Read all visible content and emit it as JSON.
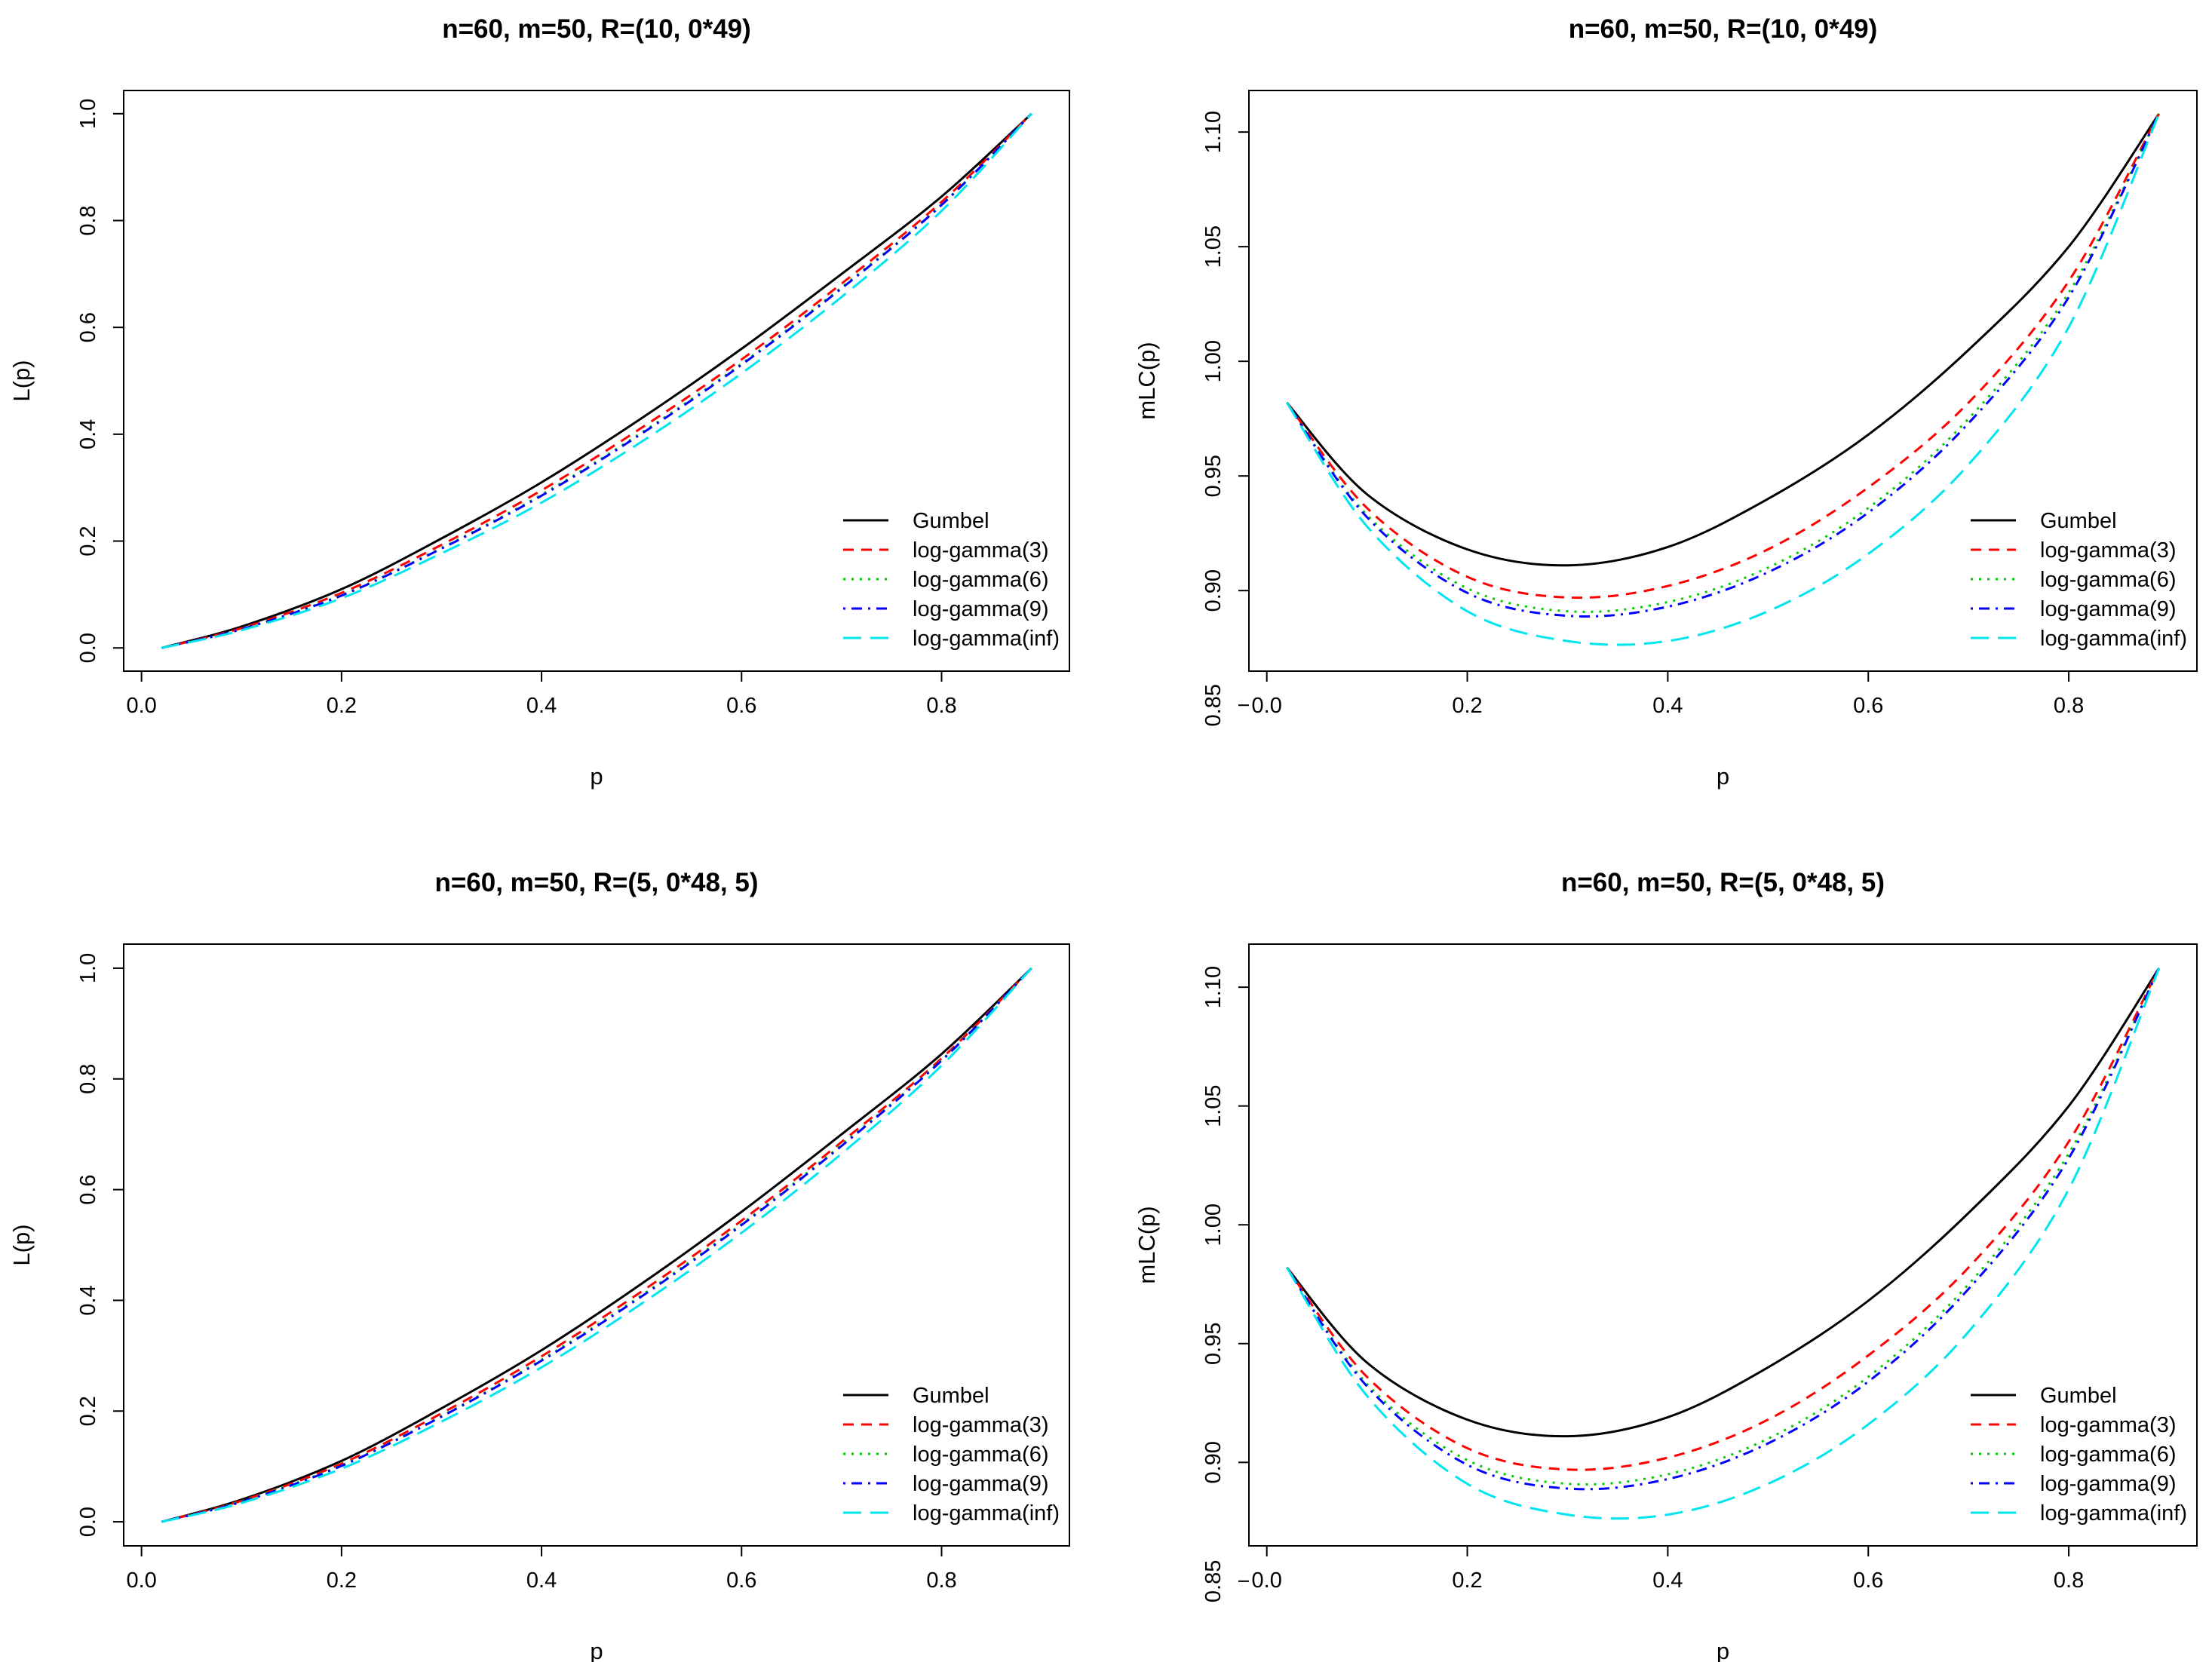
{
  "chart_data": [
    {
      "type": "line",
      "title": "n=60, m=50, R=(10, 0*49)",
      "xlabel": "p",
      "ylabel": "L(p)",
      "xlim": [
        0.0,
        0.9
      ],
      "ylim": [
        0.0,
        1.0
      ],
      "xticks": [
        "0.0",
        "0.2",
        "0.4",
        "0.6",
        "0.8"
      ],
      "yticks": [
        "0.0",
        "0.2",
        "0.4",
        "0.6",
        "0.8",
        "1.0"
      ],
      "x": [
        0.02,
        0.1,
        0.2,
        0.3,
        0.4,
        0.5,
        0.6,
        0.7,
        0.8,
        0.89
      ],
      "series": [
        {
          "name": "Gumbel",
          "color": "#000000",
          "dash": "solid",
          "values": [
            0.0,
            0.04,
            0.11,
            0.205,
            0.31,
            0.43,
            0.56,
            0.7,
            0.845,
            1.0
          ]
        },
        {
          "name": "log-gamma(3)",
          "color": "#ff0000",
          "dash": "dashed",
          "values": [
            0.0,
            0.037,
            0.103,
            0.193,
            0.295,
            0.412,
            0.54,
            0.682,
            0.835,
            1.0
          ]
        },
        {
          "name": "log-gamma(6)",
          "color": "#00cd00",
          "dash": "dotted",
          "values": [
            0.0,
            0.035,
            0.099,
            0.187,
            0.287,
            0.403,
            0.532,
            0.675,
            0.83,
            1.0
          ]
        },
        {
          "name": "log-gamma(9)",
          "color": "#0000ff",
          "dash": "dotdash",
          "values": [
            0.0,
            0.035,
            0.098,
            0.186,
            0.285,
            0.401,
            0.53,
            0.673,
            0.829,
            1.0
          ]
        },
        {
          "name": "log-gamma(inf)",
          "color": "#00e5ee",
          "dash": "longdash",
          "values": [
            0.0,
            0.033,
            0.093,
            0.177,
            0.272,
            0.386,
            0.514,
            0.657,
            0.818,
            1.0
          ]
        }
      ],
      "legend": "bottom-right"
    },
    {
      "type": "line",
      "title": "n=60, m=50, R=(10, 0*49)",
      "xlabel": "p",
      "ylabel": "mLC(p)",
      "xlim": [
        0.0,
        0.9
      ],
      "ylim": [
        0.85,
        1.11
      ],
      "xticks": [
        "0.0",
        "0.2",
        "0.4",
        "0.6",
        "0.8"
      ],
      "yticks": [
        "0.85",
        "0.90",
        "0.95",
        "1.00",
        "1.05",
        "1.10"
      ],
      "x": [
        0.02,
        0.1,
        0.2,
        0.3,
        0.4,
        0.5,
        0.6,
        0.7,
        0.8,
        0.89
      ],
      "series": [
        {
          "name": "Gumbel",
          "color": "#000000",
          "dash": "solid",
          "values": [
            0.982,
            0.942,
            0.918,
            0.911,
            0.919,
            0.94,
            0.968,
            1.005,
            1.05,
            1.108
          ]
        },
        {
          "name": "log-gamma(3)",
          "color": "#ff0000",
          "dash": "dashed",
          "values": [
            0.982,
            0.936,
            0.906,
            0.897,
            0.902,
            0.918,
            0.945,
            0.982,
            1.035,
            1.108
          ]
        },
        {
          "name": "log-gamma(6)",
          "color": "#00cd00",
          "dash": "dotted",
          "values": [
            0.982,
            0.933,
            0.901,
            0.891,
            0.895,
            0.91,
            0.936,
            0.975,
            1.03,
            1.108
          ]
        },
        {
          "name": "log-gamma(9)",
          "color": "#0000ff",
          "dash": "dotdash",
          "values": [
            0.982,
            0.932,
            0.899,
            0.889,
            0.893,
            0.908,
            0.934,
            0.973,
            1.028,
            1.108
          ]
        },
        {
          "name": "log-gamma(inf)",
          "color": "#00e5ee",
          "dash": "longdash",
          "values": [
            0.982,
            0.928,
            0.891,
            0.878,
            0.878,
            0.891,
            0.916,
            0.955,
            1.015,
            1.108
          ]
        }
      ],
      "legend": "bottom-right"
    },
    {
      "type": "line",
      "title": "n=60, m=50, R=(5, 0*48, 5)",
      "xlabel": "p",
      "ylabel": "L(p)",
      "xlim": [
        0.0,
        0.9
      ],
      "ylim": [
        0.0,
        1.0
      ],
      "xticks": [
        "0.0",
        "0.2",
        "0.4",
        "0.6",
        "0.8"
      ],
      "yticks": [
        "0.0",
        "0.2",
        "0.4",
        "0.6",
        "0.8",
        "1.0"
      ],
      "x": [
        0.02,
        0.1,
        0.2,
        0.3,
        0.4,
        0.5,
        0.6,
        0.7,
        0.8,
        0.89
      ],
      "series": [
        {
          "name": "Gumbel",
          "color": "#000000",
          "dash": "solid",
          "values": [
            0.0,
            0.04,
            0.11,
            0.205,
            0.31,
            0.43,
            0.56,
            0.7,
            0.845,
            1.0
          ]
        },
        {
          "name": "log-gamma(3)",
          "color": "#ff0000",
          "dash": "dashed",
          "values": [
            0.0,
            0.038,
            0.105,
            0.196,
            0.299,
            0.416,
            0.544,
            0.686,
            0.837,
            1.0
          ]
        },
        {
          "name": "log-gamma(6)",
          "color": "#00cd00",
          "dash": "dotted",
          "values": [
            0.0,
            0.037,
            0.102,
            0.191,
            0.293,
            0.409,
            0.538,
            0.681,
            0.834,
            1.0
          ]
        },
        {
          "name": "log-gamma(9)",
          "color": "#0000ff",
          "dash": "dotdash",
          "values": [
            0.0,
            0.036,
            0.101,
            0.19,
            0.291,
            0.407,
            0.536,
            0.679,
            0.833,
            1.0
          ]
        },
        {
          "name": "log-gamma(inf)",
          "color": "#00e5ee",
          "dash": "longdash",
          "values": [
            0.0,
            0.034,
            0.096,
            0.181,
            0.279,
            0.394,
            0.522,
            0.665,
            0.824,
            1.0
          ]
        }
      ],
      "legend": "bottom-right"
    },
    {
      "type": "line",
      "title": "n=60, m=50, R=(5, 0*48, 5)",
      "xlabel": "p",
      "ylabel": "mLC(p)",
      "xlim": [
        0.0,
        0.9
      ],
      "ylim": [
        0.85,
        1.11
      ],
      "xticks": [
        "0.0",
        "0.2",
        "0.4",
        "0.6",
        "0.8"
      ],
      "yticks": [
        "0.85",
        "0.90",
        "0.95",
        "1.00",
        "1.05",
        "1.10"
      ],
      "x": [
        0.02,
        0.1,
        0.2,
        0.3,
        0.4,
        0.5,
        0.6,
        0.7,
        0.8,
        0.89
      ],
      "series": [
        {
          "name": "Gumbel",
          "color": "#000000",
          "dash": "solid",
          "values": [
            0.982,
            0.942,
            0.918,
            0.911,
            0.919,
            0.94,
            0.968,
            1.005,
            1.05,
            1.108
          ]
        },
        {
          "name": "log-gamma(3)",
          "color": "#ff0000",
          "dash": "dashed",
          "values": [
            0.982,
            0.936,
            0.906,
            0.897,
            0.902,
            0.918,
            0.945,
            0.982,
            1.035,
            1.108
          ]
        },
        {
          "name": "log-gamma(6)",
          "color": "#00cd00",
          "dash": "dotted",
          "values": [
            0.982,
            0.933,
            0.901,
            0.891,
            0.895,
            0.91,
            0.936,
            0.975,
            1.03,
            1.108
          ]
        },
        {
          "name": "log-gamma(9)",
          "color": "#0000ff",
          "dash": "dotdash",
          "values": [
            0.982,
            0.932,
            0.899,
            0.889,
            0.893,
            0.908,
            0.934,
            0.973,
            1.028,
            1.108
          ]
        },
        {
          "name": "log-gamma(inf)",
          "color": "#00e5ee",
          "dash": "longdash",
          "values": [
            0.982,
            0.928,
            0.891,
            0.878,
            0.878,
            0.891,
            0.916,
            0.955,
            1.015,
            1.108
          ]
        }
      ],
      "legend": "bottom-right"
    }
  ]
}
